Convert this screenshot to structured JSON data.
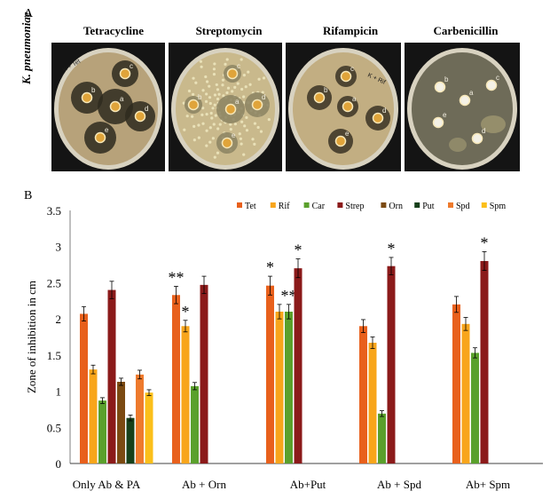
{
  "panel_a": {
    "label": "A",
    "organism": "K. pneumoniae",
    "plates": [
      {
        "name": "Tetracycline",
        "background": "#b7a27a",
        "disc_labels": [
          "K + Tet",
          "a",
          "b",
          "c",
          "d",
          "e"
        ],
        "halo_color": "#2e2a1f"
      },
      {
        "name": "Streptomycin",
        "background": "#c9b98c",
        "disc_labels": [
          "a",
          "b",
          "c",
          "d",
          "e"
        ],
        "halo_color": "#8b8262"
      },
      {
        "name": "Rifampicin",
        "background": "#c2ae82",
        "disc_labels": [
          "K + Rif",
          "a",
          "b",
          "c",
          "d",
          "e"
        ],
        "halo_color": "#3a3325"
      },
      {
        "name": "Carbenicillin",
        "background": "#6e6b58",
        "disc_labels": [
          "a",
          "b",
          "c",
          "d",
          "e"
        ],
        "halo_color": "#7c7a66"
      }
    ]
  },
  "panel_b": {
    "label": "B"
  },
  "chart_data": {
    "type": "bar",
    "ylabel": "Zone of inhibition in cm",
    "xlabel": "",
    "ylim": [
      0,
      3.5
    ],
    "yticks": [
      "0",
      "0.5",
      "1",
      "1.5",
      "2",
      "2.5",
      "3",
      "3.5"
    ],
    "legend_position": "top",
    "categories": [
      "Only Ab & PA",
      "Ab + Orn",
      "Ab+Put",
      "Ab + Spd",
      "Ab+ Spm"
    ],
    "series": [
      {
        "name": "Tet",
        "color": "#e8601c",
        "values": [
          2.07,
          2.33,
          2.46,
          1.9,
          2.2
        ],
        "errors": [
          0.1,
          0.12,
          0.13,
          0.09,
          0.11
        ]
      },
      {
        "name": "Rif",
        "color": "#f8a51b",
        "values": [
          1.3,
          1.9,
          2.1,
          1.67,
          1.93
        ],
        "errors": [
          0.06,
          0.08,
          0.1,
          0.08,
          0.09
        ]
      },
      {
        "name": "Car",
        "color": "#5aa02c",
        "values": [
          0.87,
          1.07,
          2.1,
          0.69,
          1.53
        ],
        "errors": [
          0.04,
          0.05,
          0.1,
          0.04,
          0.07
        ]
      },
      {
        "name": "Strep",
        "color": "#8b1a1a",
        "values": [
          2.4,
          2.47,
          2.7,
          2.73,
          2.8
        ],
        "errors": [
          0.12,
          0.12,
          0.13,
          0.12,
          0.13
        ]
      },
      {
        "name": "Orn",
        "color": "#7b4a12",
        "values": [
          1.13,
          null,
          null,
          null,
          null
        ],
        "errors": [
          0.05,
          null,
          null,
          null,
          null
        ]
      },
      {
        "name": "Put",
        "color": "#17401a",
        "values": [
          0.63,
          null,
          null,
          null,
          null
        ],
        "errors": [
          0.04,
          null,
          null,
          null,
          null
        ]
      },
      {
        "name": "Spd",
        "color": "#ee7a2d",
        "values": [
          1.23,
          null,
          null,
          null,
          null
        ],
        "errors": [
          0.06,
          null,
          null,
          null,
          null
        ]
      },
      {
        "name": "Spm",
        "color": "#fbbf1a",
        "values": [
          0.98,
          null,
          null,
          null,
          null
        ],
        "errors": [
          0.04,
          null,
          null,
          null,
          null
        ]
      }
    ],
    "annotations": [
      {
        "category": "Ab + Orn",
        "series": "Tet",
        "text": "**"
      },
      {
        "category": "Ab + Orn",
        "series": "Rif",
        "text": "*"
      },
      {
        "category": "Ab+Put",
        "series": "Tet",
        "text": "*"
      },
      {
        "category": "Ab+Put",
        "series": "Car",
        "text": "**"
      },
      {
        "category": "Ab+Put",
        "series": "Strep",
        "text": "*"
      },
      {
        "category": "Ab + Spd",
        "series": "Strep",
        "text": "*"
      },
      {
        "category": "Ab+ Spm",
        "series": "Strep",
        "text": "*"
      }
    ]
  }
}
